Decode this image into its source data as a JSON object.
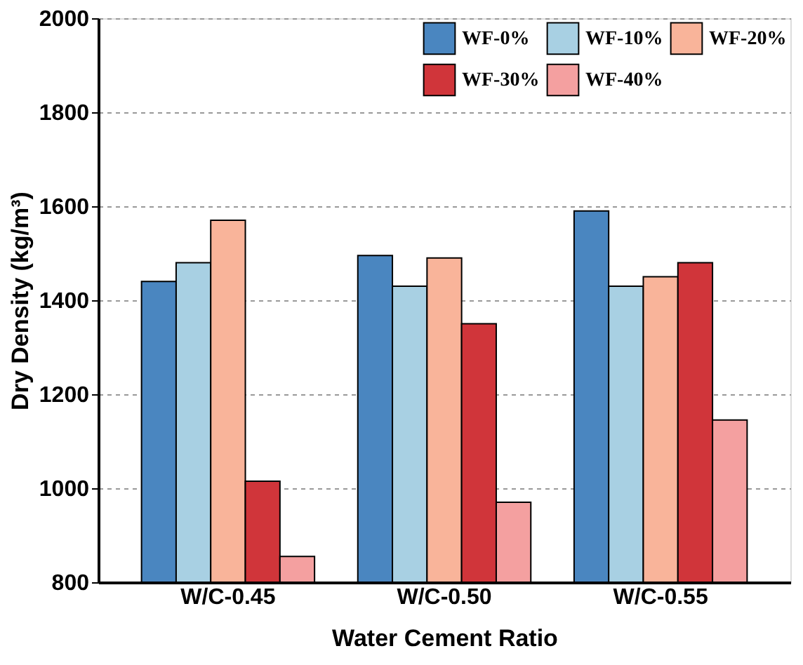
{
  "chart_data": {
    "type": "bar",
    "xlabel": "Water Cement Ratio",
    "ylabel": "Dry Density (kg/m³)",
    "categories": [
      "W/C-0.45",
      "W/C-0.50",
      "W/C-0.55"
    ],
    "series": [
      {
        "name": "WF-0%",
        "color": "#4a86c0",
        "values": [
          1440,
          1495,
          1590
        ]
      },
      {
        "name": "WF-10%",
        "color": "#a8d0e3",
        "values": [
          1480,
          1430,
          1430
        ]
      },
      {
        "name": "WF-20%",
        "color": "#f9b49a",
        "values": [
          1570,
          1490,
          1450
        ]
      },
      {
        "name": "WF-30%",
        "color": "#d0353a",
        "values": [
          1015,
          1350,
          1480
        ]
      },
      {
        "name": "WF-40%",
        "color": "#f4a0a0",
        "values": [
          855,
          970,
          1145
        ]
      }
    ],
    "ylim": [
      800,
      2000
    ],
    "yticks": [
      800,
      1000,
      1200,
      1400,
      1600,
      1800,
      2000
    ],
    "grid": "y",
    "legend": "top right"
  }
}
